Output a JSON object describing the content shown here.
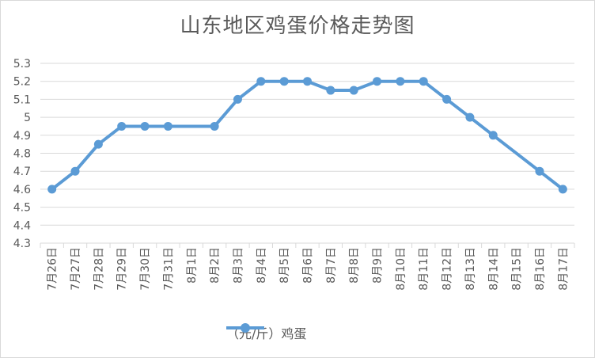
{
  "chart_data": {
    "type": "line",
    "title": "山东地区鸡蛋价格走势图",
    "categories": [
      "7月26日",
      "7月27日",
      "7月28日",
      "7月29日",
      "7月30日",
      "7月31日",
      "8月1日",
      "8月2日",
      "8月3日",
      "8月4日",
      "8月5日",
      "8月6日",
      "8月7日",
      "8月8日",
      "8月9日",
      "8月10日",
      "8月11日",
      "8月12日",
      "8月13日",
      "8月14日",
      "8月15日",
      "8月16日",
      "8月17日"
    ],
    "series": [
      {
        "name": "（元/斤）鸡蛋",
        "values": [
          4.6,
          4.7,
          4.85,
          4.95,
          4.95,
          4.95,
          null,
          4.95,
          5.1,
          5.2,
          5.2,
          5.2,
          5.15,
          5.15,
          5.2,
          5.2,
          5.2,
          5.1,
          5.0,
          4.9,
          null,
          4.7,
          4.6
        ],
        "color": "#5b9bd5"
      }
    ],
    "ylim": [
      4.3,
      5.3
    ],
    "yticks": [
      "5.3",
      "5.2",
      "5.1",
      "5",
      "4.9",
      "4.8",
      "4.7",
      "4.6",
      "4.5",
      "4.4",
      "4.3"
    ],
    "xlabel": "",
    "ylabel": "",
    "grid": true,
    "legend": "bottom"
  }
}
